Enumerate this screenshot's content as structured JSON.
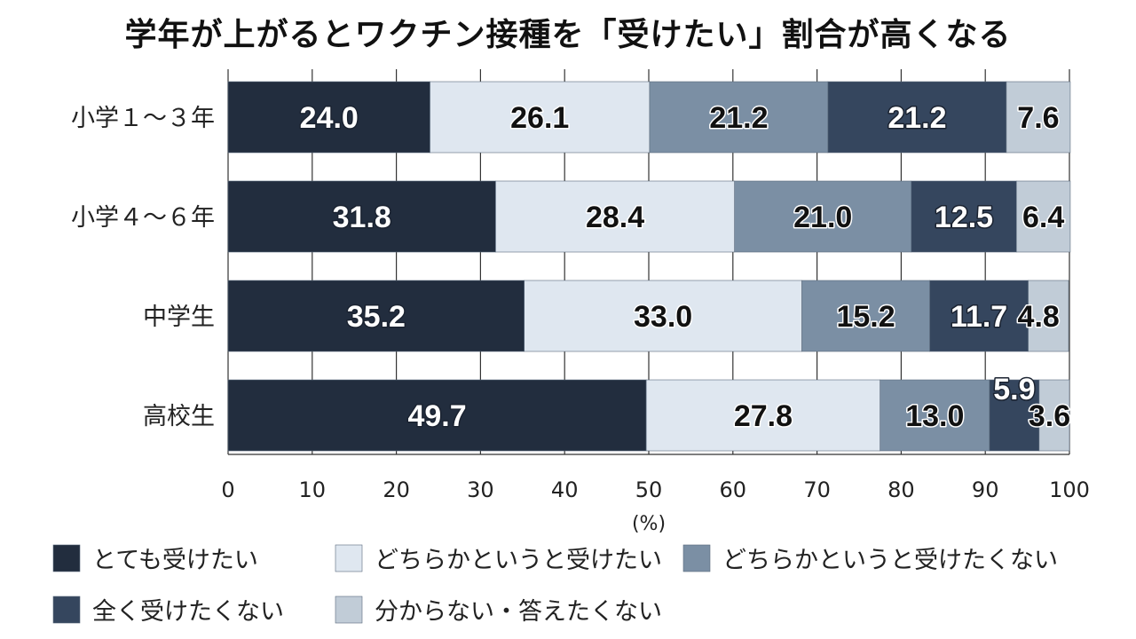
{
  "chart_data": {
    "type": "bar",
    "orientation": "horizontal",
    "stacked": true,
    "title": "学年が上がるとワクチン接種を「受けたい」割合が高くなる",
    "categories": [
      "小学１～３年",
      "小学４～６年",
      "中学生",
      "高校生"
    ],
    "series": [
      {
        "name": "とても受けたい",
        "color": "#222d3e",
        "label_color": "#ffffff",
        "values": [
          24.0,
          31.8,
          35.2,
          49.7
        ]
      },
      {
        "name": "どちらかというと受けたい",
        "color": "#dfe7f0",
        "label_color": "#111111",
        "values": [
          26.1,
          28.4,
          33.0,
          27.8
        ]
      },
      {
        "name": "どちらかというと受けたくない",
        "color": "#7b8fa4",
        "label_color": "#111111",
        "values": [
          21.2,
          21.0,
          15.2,
          13.0
        ]
      },
      {
        "name": "全く受けたくない",
        "color": "#35465e",
        "label_color": "#ffffff",
        "values": [
          21.2,
          12.5,
          11.7,
          5.9
        ]
      },
      {
        "name": "分からない・答えたくない",
        "color": "#c1ccd7",
        "label_color": "#111111",
        "values": [
          7.6,
          6.4,
          4.8,
          3.6
        ]
      }
    ],
    "value_labels": [
      [
        "24.0",
        "31.8",
        "35.2",
        "49.7"
      ],
      [
        "26.1",
        "28.4",
        "33.0",
        "27.8"
      ],
      [
        "21.2",
        "21.0",
        "15.2",
        "13.0"
      ],
      [
        "21.2",
        "12.5",
        "11.7",
        "5.9"
      ],
      [
        "7.6",
        "6.4",
        "4.8",
        "3.6"
      ]
    ],
    "xlim": [
      0,
      100
    ],
    "xticks": [
      0,
      10,
      20,
      30,
      40,
      50,
      60,
      70,
      80,
      90,
      100
    ],
    "xlabel": "(%)",
    "grid": true,
    "legend_position": "bottom"
  }
}
